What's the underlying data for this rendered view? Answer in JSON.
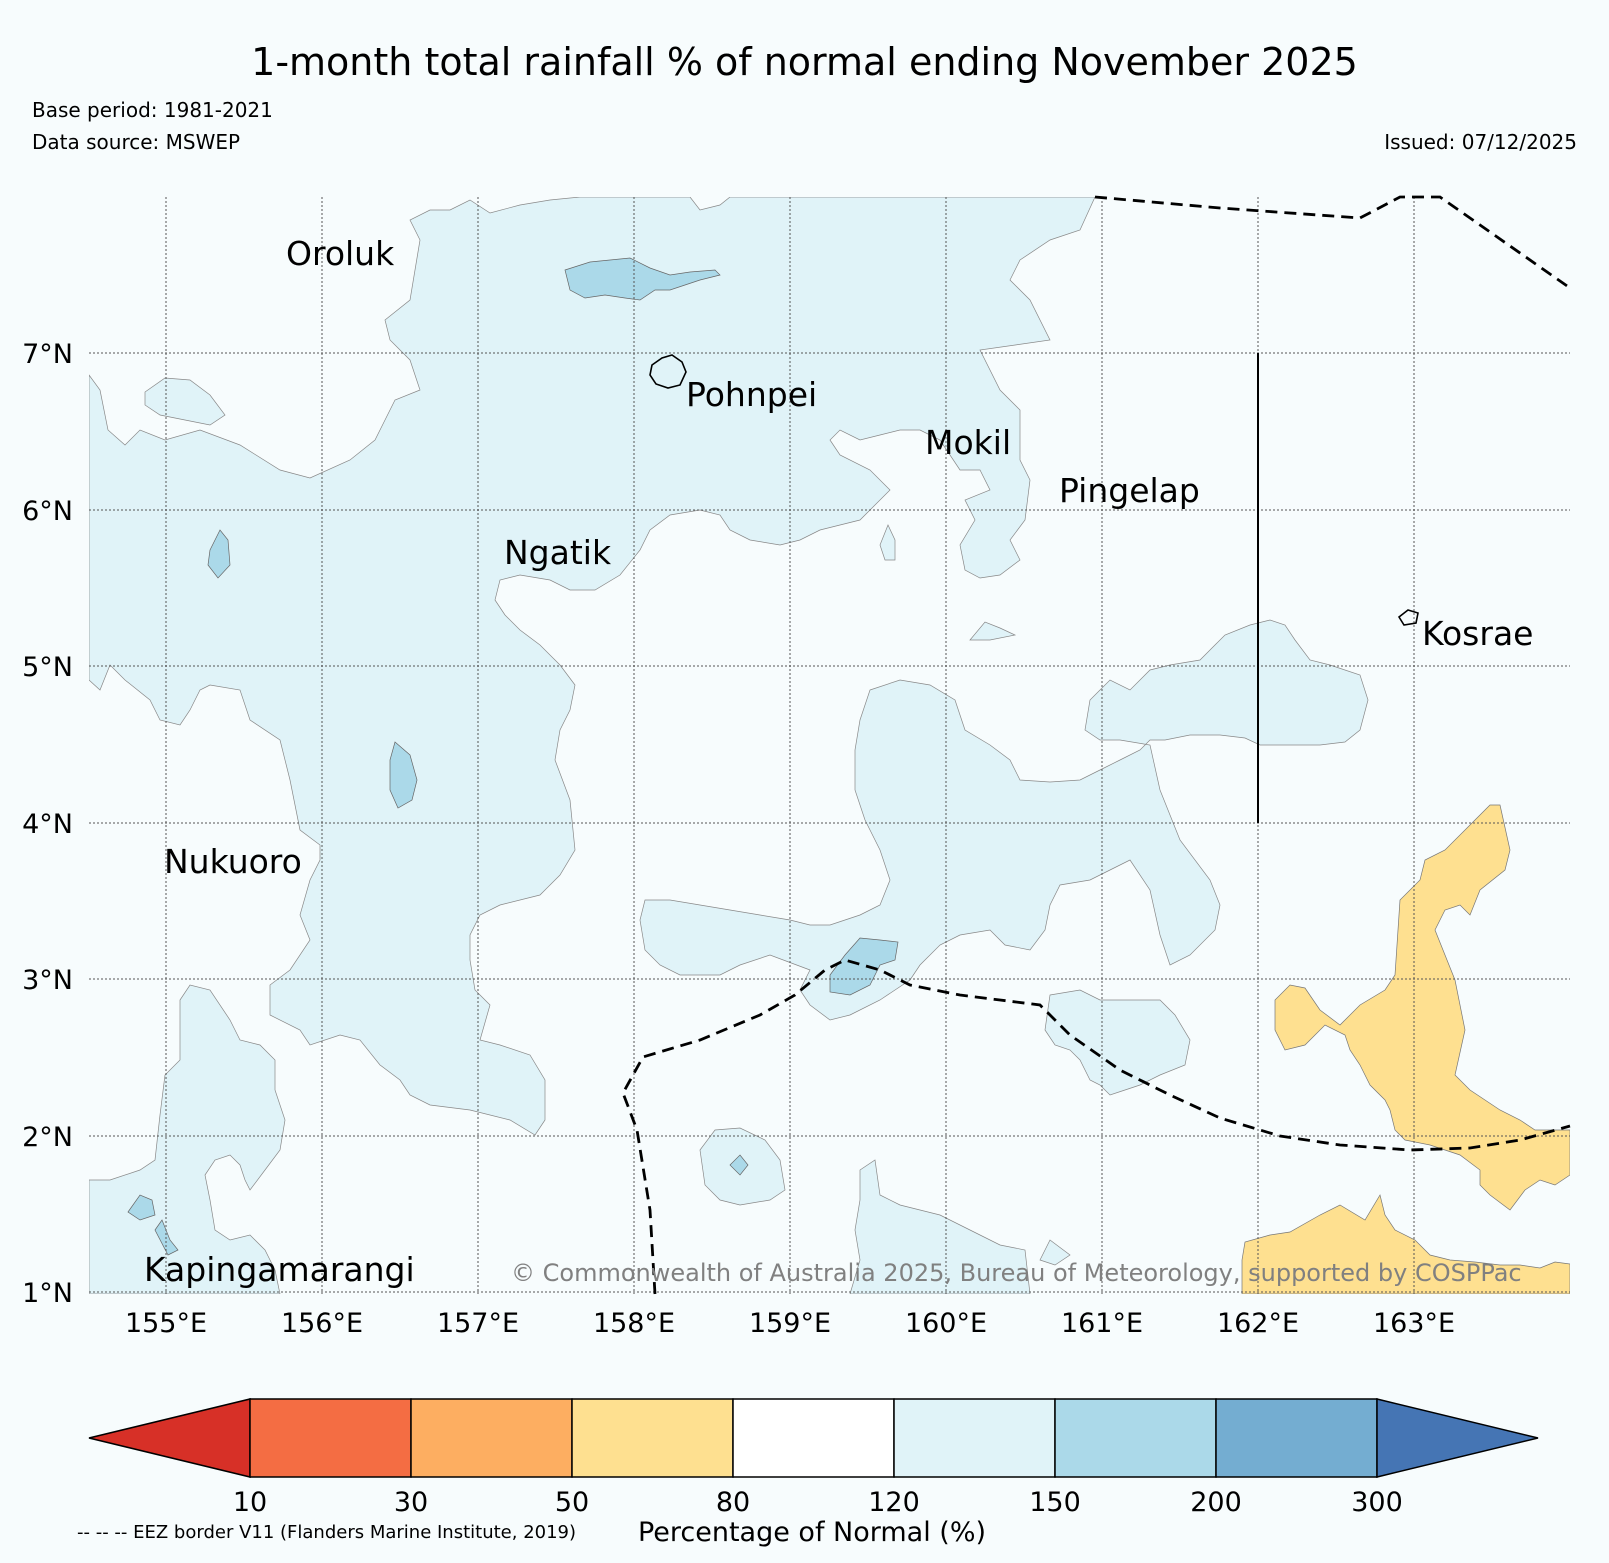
{
  "title": "1-month total rainfall % of normal ending November 2025",
  "base_period": "Base period: 1981-2021",
  "data_source": "Data source: MSWEP",
  "issued": "Issued: 07/12/2025",
  "copyright": "© Commonwealth of Australia 2025, Bureau of Meteorology, supported by COSPPac",
  "footnote": "-- -- -- EEZ border V11 (Flanders Marine Institute, 2019)",
  "map": {
    "lon_labels": [
      "155°E",
      "156°E",
      "157°E",
      "158°E",
      "159°E",
      "160°E",
      "161°E",
      "162°E",
      "163°E"
    ],
    "lat_labels": [
      "7°N",
      "6°N",
      "5°N",
      "4°N",
      "3°N",
      "2°N",
      "1°N"
    ],
    "places": [
      "Oroluk",
      "Pohnpei",
      "Mokil",
      "Pingelap",
      "Ngatik",
      "Kosrae",
      "Nukuoro",
      "Kapingamarangi"
    ]
  },
  "colorbar": {
    "label": "Percentage of Normal (%)",
    "ticks": [
      "10",
      "30",
      "50",
      "80",
      "120",
      "150",
      "200",
      "300"
    ],
    "colors": [
      "#d73027",
      "#f46d43",
      "#fdae61",
      "#fee090",
      "#ffffff",
      "#e0f3f8",
      "#abd9e9",
      "#74add1",
      "#4575b4"
    ]
  }
}
